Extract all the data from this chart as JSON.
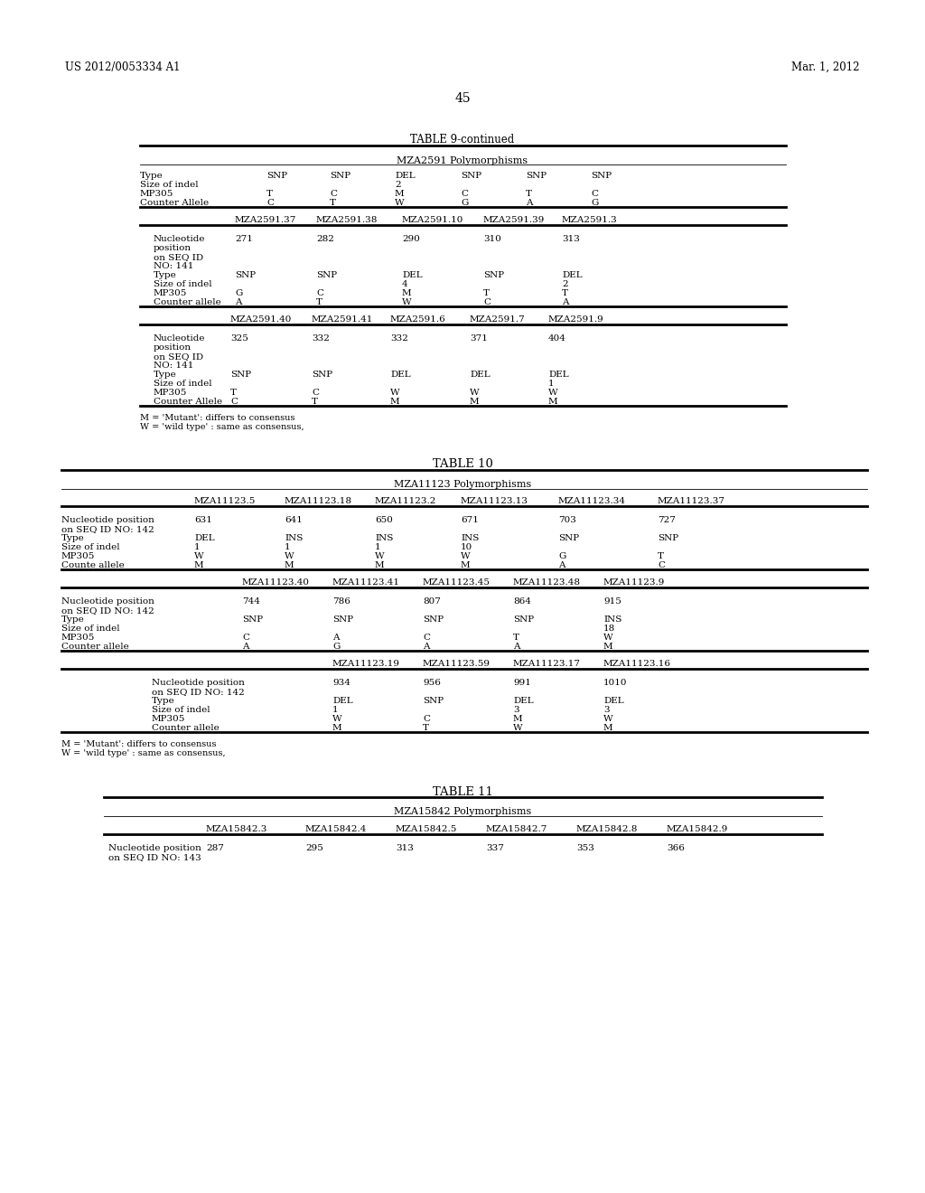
{
  "header_left": "US 2012/0053334 A1",
  "header_right": "Mar. 1, 2012",
  "page_number": "45",
  "background_color": "#ffffff",
  "text_color": "#000000"
}
